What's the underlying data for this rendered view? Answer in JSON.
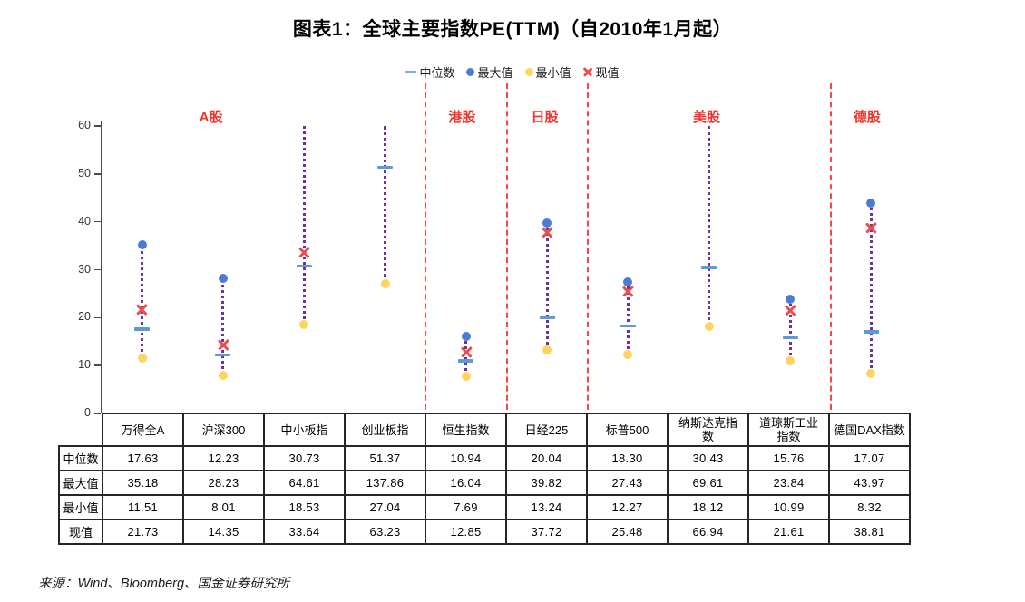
{
  "title": "图表1：全球主要指数PE(TTM)（自2010年1月起）",
  "source": "来源：Wind、Bloomberg、国金证券研究所",
  "colors": {
    "median": "#5B9BD5",
    "max": "#4A7CD6",
    "min": "#FFD45E",
    "current": "#E85050",
    "range_line": "#7030A0",
    "region_label": "#F03228",
    "separator": "#FF4242",
    "axis": "#4a4a4a"
  },
  "legend": [
    {
      "key": "median",
      "label": "中位数",
      "marker": "dash"
    },
    {
      "key": "max",
      "label": "最大值",
      "marker": "dot"
    },
    {
      "key": "min",
      "label": "最小值",
      "marker": "dot"
    },
    {
      "key": "current",
      "label": "现值",
      "marker": "x"
    }
  ],
  "chart_data": {
    "type": "scatter",
    "title": "图表1：全球主要指数PE(TTM)（自2010年1月起）",
    "categories": [
      "万得全A",
      "沪深300",
      "中小板指",
      "创业板指",
      "恒生指数",
      "日经225",
      "标普500",
      "纳斯达克指数",
      "道琼斯工业指数",
      "德国DAX指数"
    ],
    "series": [
      {
        "name": "中位数",
        "role": "median",
        "values": [
          17.63,
          12.23,
          30.73,
          51.37,
          10.94,
          20.04,
          18.3,
          30.43,
          15.76,
          17.07
        ]
      },
      {
        "name": "最大值",
        "role": "max",
        "values": [
          35.18,
          28.23,
          64.61,
          137.86,
          16.04,
          39.82,
          27.43,
          69.61,
          23.84,
          43.97
        ]
      },
      {
        "name": "最小值",
        "role": "min",
        "values": [
          11.51,
          8.01,
          18.53,
          27.04,
          7.69,
          13.24,
          12.27,
          18.12,
          10.99,
          8.32
        ]
      },
      {
        "name": "现值",
        "role": "current",
        "values": [
          21.73,
          14.35,
          33.64,
          63.23,
          12.85,
          37.72,
          25.48,
          66.94,
          21.61,
          38.81
        ]
      }
    ],
    "ylim": [
      0,
      60
    ],
    "yticks": [
      0,
      10,
      20,
      30,
      40,
      50,
      60
    ],
    "grid": false,
    "legend_position": "top",
    "regions": [
      {
        "label": "A股",
        "span": [
          0,
          3
        ],
        "label_center_col": 1.35
      },
      {
        "label": "港股",
        "span": [
          4,
          4
        ],
        "label_center_col": 4.45
      },
      {
        "label": "日股",
        "span": [
          5,
          5
        ],
        "label_center_col": 5.47
      },
      {
        "label": "美股",
        "span": [
          6,
          8
        ],
        "label_center_col": 7.47
      },
      {
        "label": "德股",
        "span": [
          9,
          9
        ],
        "label_center_col": 9.45
      }
    ],
    "separators_after": [
      3,
      4,
      5,
      8
    ]
  },
  "table": {
    "row_labels": [
      "中位数",
      "最大值",
      "最小值",
      "现值"
    ],
    "columns": [
      "万得全A",
      "沪深300",
      "中小板指",
      "创业板指",
      "恒生指数",
      "日经225",
      "标普500",
      "纳斯达克指\n数",
      "道琼斯工业\n指数",
      "德国DAX指数"
    ],
    "rows": [
      [
        "17.63",
        "12.23",
        "30.73",
        "51.37",
        "10.94",
        "20.04",
        "18.30",
        "30.43",
        "15.76",
        "17.07"
      ],
      [
        "35.18",
        "28.23",
        "64.61",
        "137.86",
        "16.04",
        "39.82",
        "27.43",
        "69.61",
        "23.84",
        "43.97"
      ],
      [
        "11.51",
        "8.01",
        "18.53",
        "27.04",
        "7.69",
        "13.24",
        "12.27",
        "18.12",
        "10.99",
        "8.32"
      ],
      [
        "21.73",
        "14.35",
        "33.64",
        "63.23",
        "12.85",
        "37.72",
        "25.48",
        "66.94",
        "21.61",
        "38.81"
      ]
    ]
  }
}
